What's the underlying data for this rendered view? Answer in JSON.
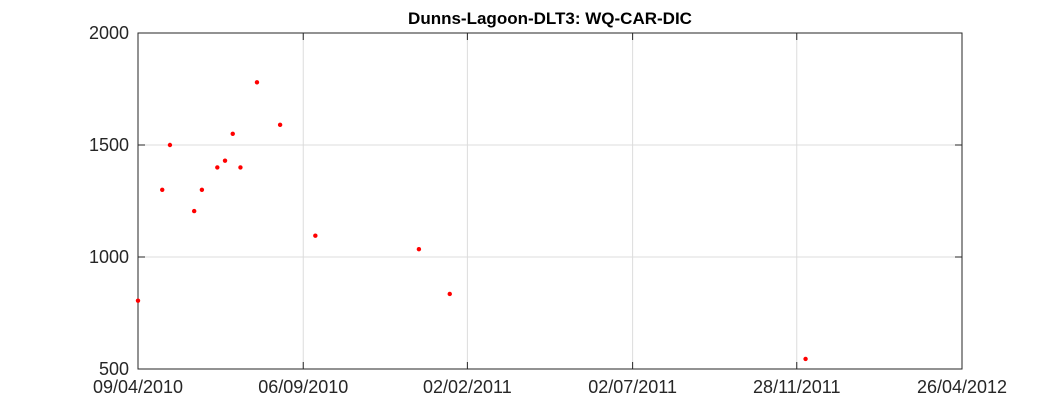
{
  "chart_data": {
    "type": "scatter",
    "title": "Dunns-Lagoon-DLT3: WQ-CAR-DIC",
    "xlabel": "",
    "ylabel": "",
    "x_axis_type": "date",
    "xlim": [
      "2010-04-09",
      "2012-04-26"
    ],
    "ylim": [
      500,
      2000
    ],
    "x_ticks": [
      "2010-04-09",
      "2010-09-06",
      "2011-02-02",
      "2011-07-02",
      "2011-11-28",
      "2012-04-26"
    ],
    "x_tick_labels": [
      "09/04/2010",
      "06/09/2010",
      "02/02/2011",
      "02/07/2011",
      "28/11/2011",
      "26/04/2012"
    ],
    "y_ticks": [
      500,
      1000,
      1500,
      2000
    ],
    "y_tick_labels": [
      "500",
      "1000",
      "1500",
      "2000"
    ],
    "grid": true,
    "marker_color": "#ff0000",
    "series": [
      {
        "points": [
          {
            "x": "2010-04-09",
            "y": 805
          },
          {
            "x": "2010-05-01",
            "y": 1300
          },
          {
            "x": "2010-05-08",
            "y": 1500
          },
          {
            "x": "2010-05-30",
            "y": 1205
          },
          {
            "x": "2010-06-06",
            "y": 1300
          },
          {
            "x": "2010-06-20",
            "y": 1400
          },
          {
            "x": "2010-06-27",
            "y": 1430
          },
          {
            "x": "2010-07-04",
            "y": 1550
          },
          {
            "x": "2010-07-11",
            "y": 1400
          },
          {
            "x": "2010-07-26",
            "y": 1780
          },
          {
            "x": "2010-08-16",
            "y": 1590
          },
          {
            "x": "2010-09-17",
            "y": 1095
          },
          {
            "x": "2010-12-20",
            "y": 1035
          },
          {
            "x": "2011-01-17",
            "y": 835
          },
          {
            "x": "2011-12-06",
            "y": 545
          }
        ]
      }
    ]
  }
}
